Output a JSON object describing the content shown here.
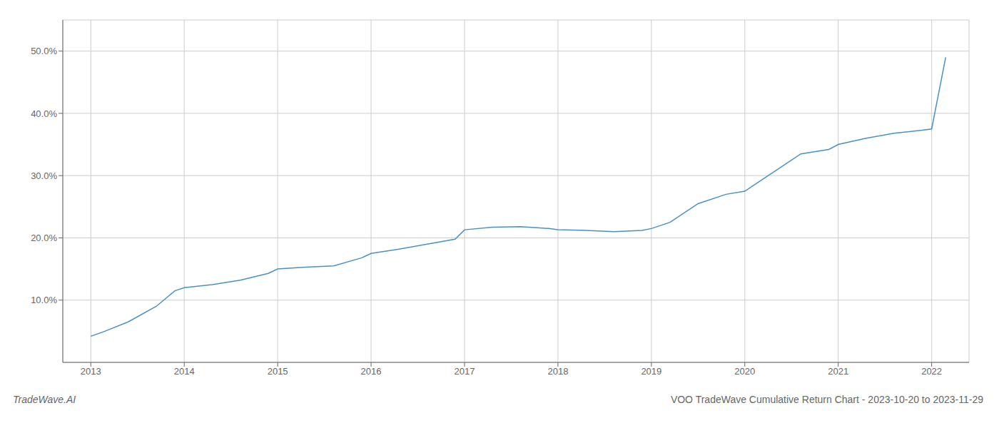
{
  "chart_data": {
    "type": "line",
    "title": "VOO TradeWave Cumulative Return Chart - 2023-10-20 to 2023-11-29",
    "annotations": [
      {
        "text": "TradeWave.AI"
      }
    ],
    "x": [
      2013.0,
      2013.15,
      2013.4,
      2013.7,
      2013.9,
      2014.0,
      2014.3,
      2014.6,
      2014.9,
      2015.0,
      2015.3,
      2015.6,
      2015.9,
      2016.0,
      2016.3,
      2016.6,
      2016.9,
      2017.0,
      2017.3,
      2017.6,
      2017.9,
      2018.0,
      2018.3,
      2018.6,
      2018.9,
      2019.0,
      2019.2,
      2019.5,
      2019.8,
      2020.0,
      2020.3,
      2020.6,
      2020.9,
      2021.0,
      2021.3,
      2021.6,
      2021.9,
      2022.0,
      2022.15
    ],
    "values": [
      4.2,
      5.0,
      6.5,
      9.0,
      11.5,
      12.0,
      12.5,
      13.2,
      14.3,
      15.0,
      15.3,
      15.5,
      16.8,
      17.5,
      18.2,
      19.0,
      19.8,
      21.3,
      21.7,
      21.8,
      21.5,
      21.3,
      21.2,
      21.0,
      21.2,
      21.5,
      22.5,
      25.5,
      27.0,
      27.5,
      30.5,
      33.5,
      34.2,
      35.0,
      36.0,
      36.8,
      37.3,
      37.5,
      49.0
    ],
    "color": "#4a90c4",
    "xlim": [
      2012.7,
      2022.4
    ],
    "ylim": [
      0,
      55
    ],
    "xticks": [
      2013,
      2014,
      2015,
      2016,
      2017,
      2018,
      2019,
      2020,
      2021,
      2022
    ],
    "yticks": [
      {
        "value": 10.0,
        "label": "10.0%"
      },
      {
        "value": 20.0,
        "label": "20.0%"
      },
      {
        "value": 30.0,
        "label": "30.0%"
      },
      {
        "value": 40.0,
        "label": "40.0%"
      },
      {
        "value": 50.0,
        "label": "50.0%"
      }
    ],
    "grid": true
  }
}
